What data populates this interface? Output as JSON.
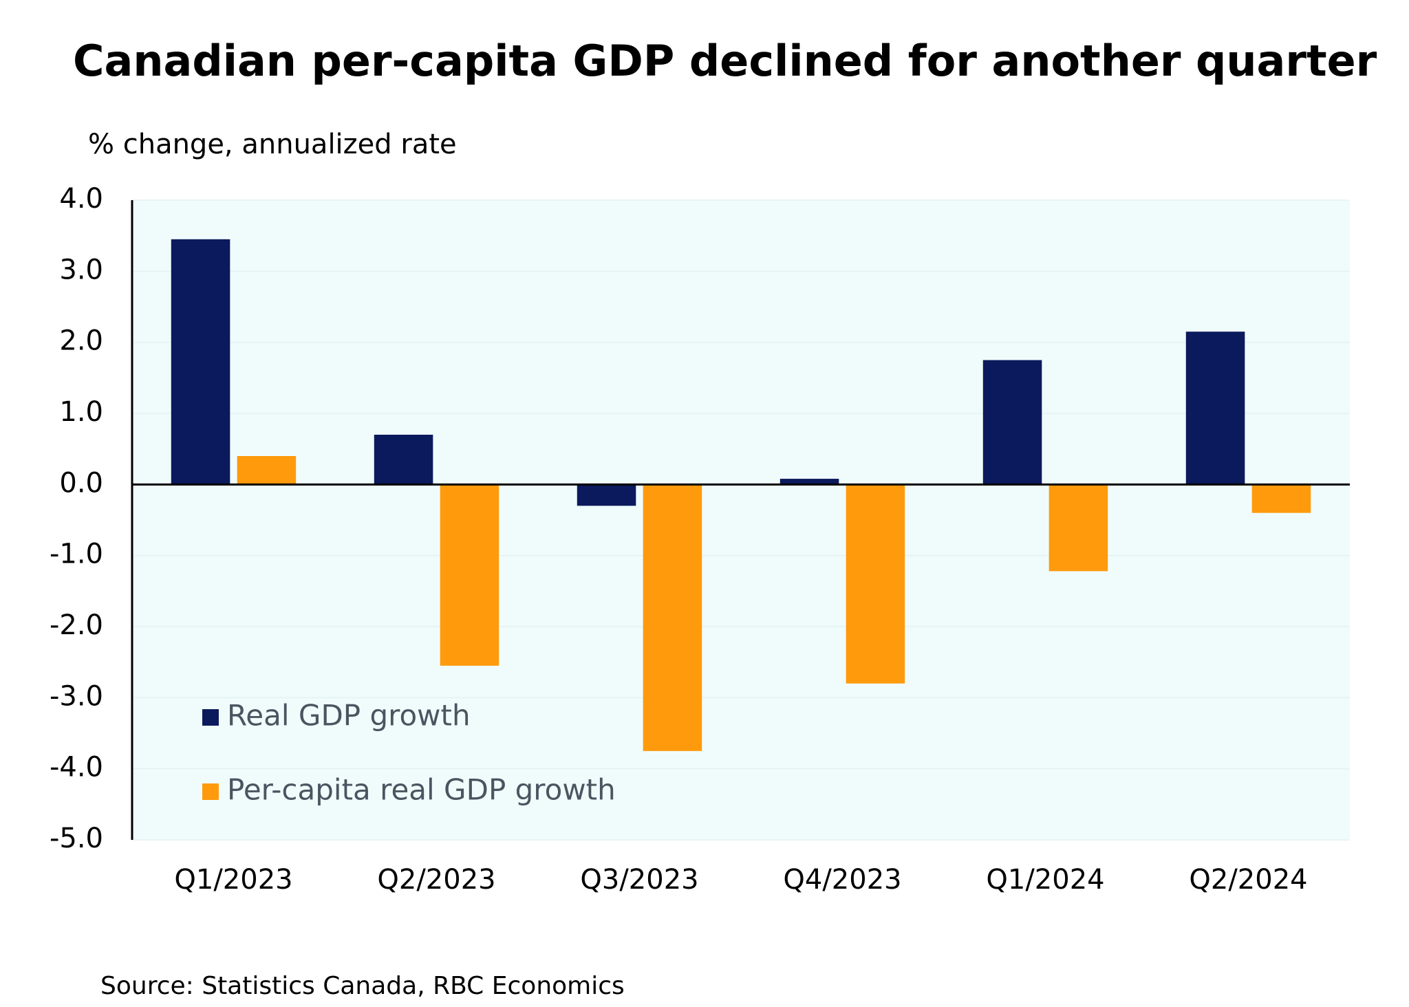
{
  "chart_data": {
    "type": "bar",
    "title": "Canadian per-capita GDP declined for another quarter",
    "subtitle": "% change, annualized rate",
    "source": "Source: Statistics Canada, RBC Economics",
    "categories": [
      "Q1/2023",
      "Q2/2023",
      "Q3/2023",
      "Q4/2023",
      "Q1/2024",
      "Q2/2024"
    ],
    "series": [
      {
        "name": "Real GDP growth",
        "color": "#0b1a5c",
        "values": [
          3.45,
          0.7,
          -0.3,
          0.08,
          1.75,
          2.15
        ]
      },
      {
        "name": "Per-capita real GDP growth",
        "color": "#ff9a0d",
        "values": [
          0.4,
          -2.55,
          -3.75,
          -2.8,
          -1.22,
          -0.4
        ]
      }
    ],
    "ylim": [
      -5,
      4
    ],
    "yticks": [
      {
        "value": 4,
        "label": "4.0"
      },
      {
        "value": 3,
        "label": "3.0"
      },
      {
        "value": 2,
        "label": "2.0"
      },
      {
        "value": 1,
        "label": "1.0"
      },
      {
        "value": 0,
        "label": "0.0"
      },
      {
        "value": -1,
        "label": "-1.0"
      },
      {
        "value": -2,
        "label": "-2.0"
      },
      {
        "value": -3,
        "label": "-3.0"
      },
      {
        "value": -4,
        "label": "-4.0"
      },
      {
        "value": -5,
        "label": "-5.0"
      }
    ],
    "grid": true,
    "legend": "bottom-left"
  }
}
